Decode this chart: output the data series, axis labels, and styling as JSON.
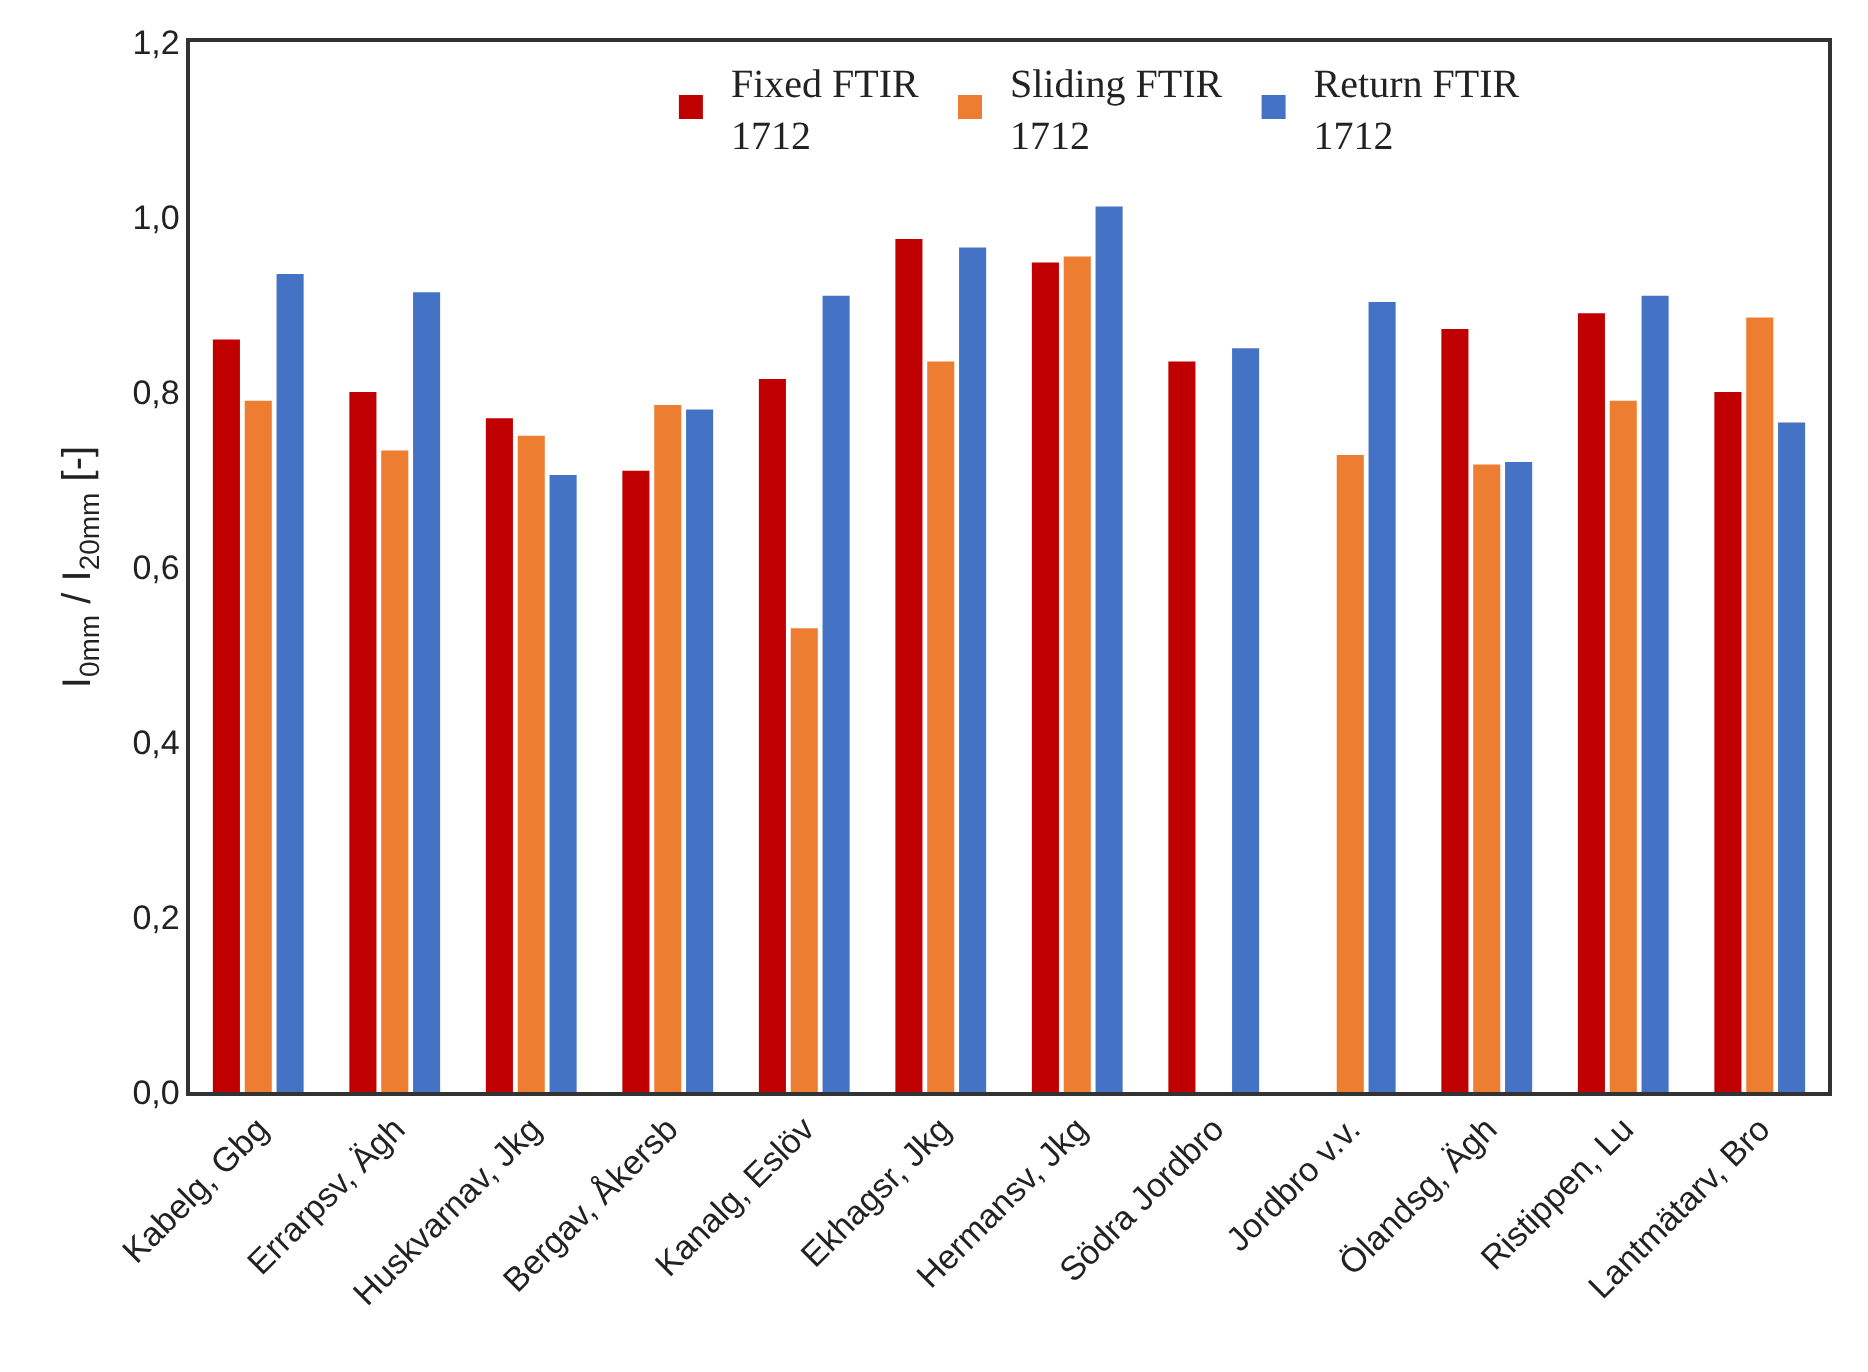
{
  "chart_data": {
    "type": "bar",
    "ylabel": "I$_{0mm}$ / I$_{20mm}$ [-]",
    "categories": [
      "Kabelg, Gbg",
      "Errarpsv, Ägh",
      "Huskvarnav, Jkg",
      "Bergav, Åkersb",
      "Kanalg, Eslöv",
      "Ekhagsr, Jkg",
      "Hermansv, Jkg",
      "Södra Jordbro",
      "Jordbro v.v.",
      "Ölandsg, Ägh",
      "Ristippen, Lu",
      "Lantmätarv, Bro"
    ],
    "series": [
      {
        "name": "Fixed FTIR 1712",
        "color": "#c00000",
        "values": [
          0.86,
          0.8,
          0.77,
          0.71,
          0.815,
          0.975,
          0.948,
          0.835,
          null,
          0.872,
          0.89,
          0.8
        ]
      },
      {
        "name": "Sliding FTIR 1712",
        "color": "#ed7d31",
        "values": [
          0.79,
          0.733,
          0.75,
          0.785,
          0.53,
          0.835,
          0.955,
          null,
          0.728,
          0.717,
          0.79,
          0.885
        ]
      },
      {
        "name": "Return FTIR 1712",
        "color": "#4472c4",
        "values": [
          0.935,
          0.914,
          0.705,
          0.78,
          0.91,
          0.965,
          1.012,
          0.85,
          0.903,
          0.72,
          0.91,
          0.765
        ]
      }
    ],
    "ylim": [
      0,
      1.2
    ],
    "yticks": [
      {
        "value": 0,
        "label": "0,0"
      },
      {
        "value": 0.2,
        "label": "0,2"
      },
      {
        "value": 0.4,
        "label": "0,4"
      },
      {
        "value": 0.6,
        "label": "0,6"
      },
      {
        "value": 0.8,
        "label": "0,8"
      },
      {
        "value": 1.0,
        "label": "1,0"
      },
      {
        "value": 1.2,
        "label": "1,2"
      }
    ],
    "legend": "top"
  }
}
